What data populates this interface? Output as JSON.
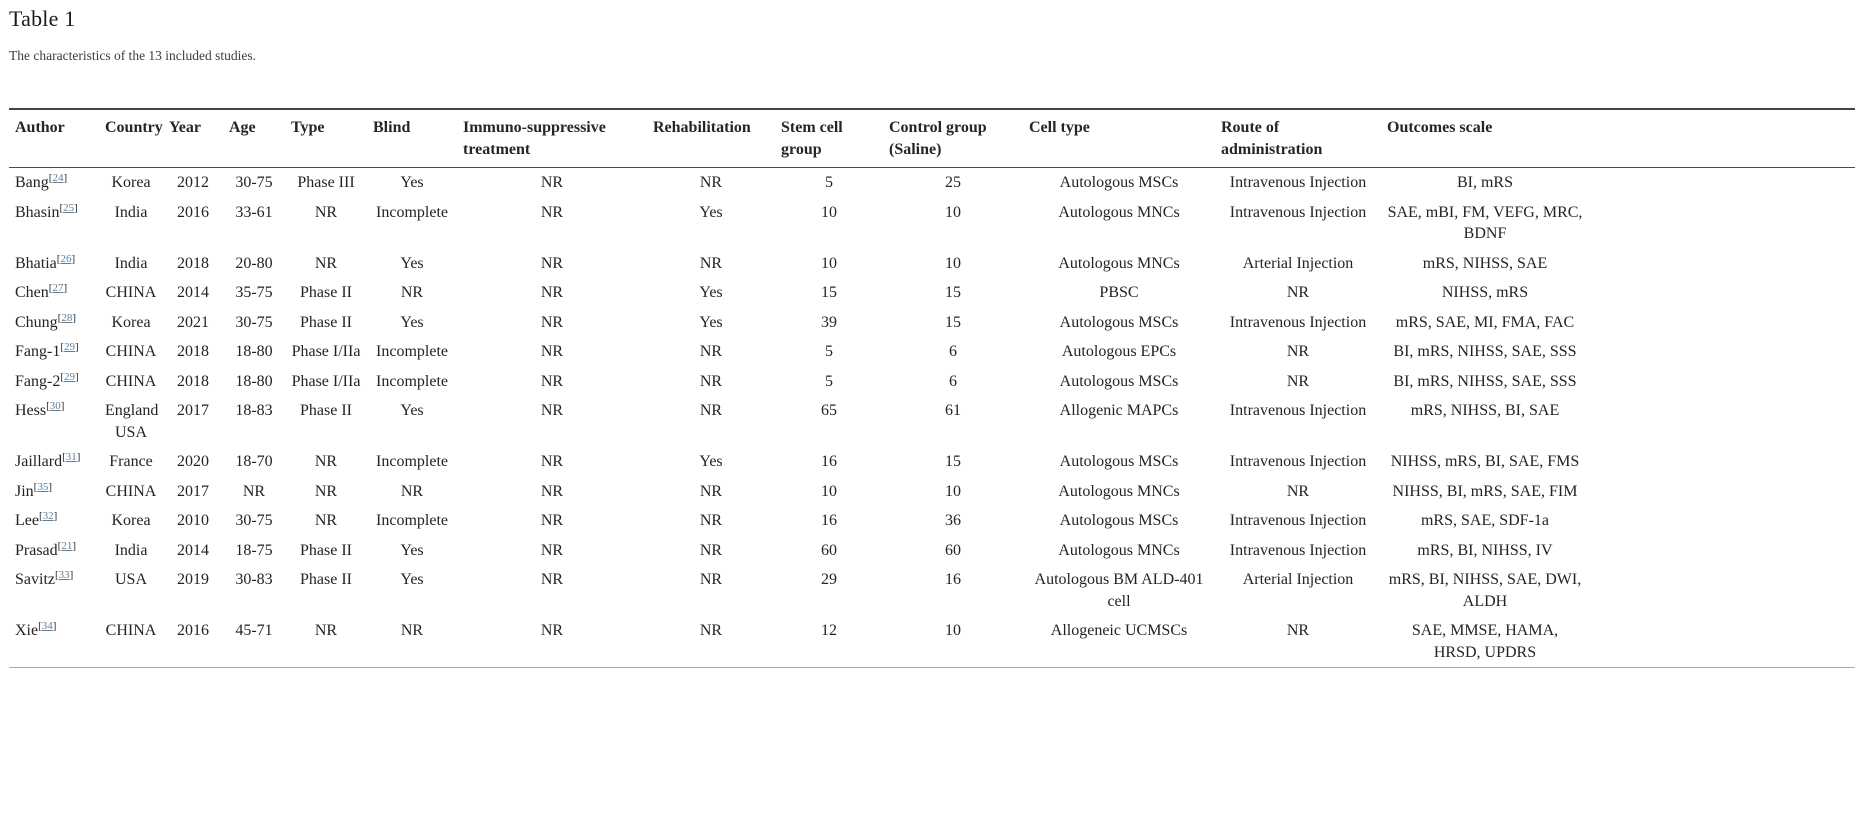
{
  "page": {
    "title": "Table 1",
    "caption": "The characteristics of the 13 included studies."
  },
  "colors": {
    "citation_link": "#5e7f9c",
    "rule_dark": "#454545",
    "rule_light": "#a8a8a8"
  },
  "table": {
    "columns": [
      "Author",
      "Country",
      "Year",
      "Age",
      "Type",
      "Blind",
      "Immuno-suppressive treatment",
      "Rehabilitation",
      "Stem cell group",
      "Control group (Saline)",
      "Cell type",
      "Route of administration",
      "Outcomes scale"
    ],
    "rows": [
      {
        "author": "Bang",
        "ref": "24",
        "country": "Korea",
        "year": "2012",
        "age": "30-75",
        "type": "Phase III",
        "blind": "Yes",
        "immuno": "NR",
        "rehab": "NR",
        "stem": "5",
        "control": "25",
        "cell_type": "Autologous MSCs",
        "route": "Intravenous Injection",
        "outcomes": "BI, mRS"
      },
      {
        "author": "Bhasin",
        "ref": "25",
        "country": "India",
        "year": "2016",
        "age": "33-61",
        "type": "NR",
        "blind": "Incomplete",
        "immuno": "NR",
        "rehab": "Yes",
        "stem": "10",
        "control": "10",
        "cell_type": "Autologous MNCs",
        "route": "Intravenous Injection",
        "outcomes": "SAE, mBI, FM, VEFG, MRC, BDNF"
      },
      {
        "author": "Bhatia",
        "ref": "26",
        "country": "India",
        "year": "2018",
        "age": "20-80",
        "type": "NR",
        "blind": "Yes",
        "immuno": "NR",
        "rehab": "NR",
        "stem": "10",
        "control": "10",
        "cell_type": "Autologous MNCs",
        "route": "Arterial Injection",
        "outcomes": "mRS, NIHSS, SAE"
      },
      {
        "author": "Chen",
        "ref": "27",
        "country": "CHINA",
        "year": "2014",
        "age": "35-75",
        "type": "Phase II",
        "blind": "NR",
        "immuno": "NR",
        "rehab": "Yes",
        "stem": "15",
        "control": "15",
        "cell_type": "PBSC",
        "route": "NR",
        "outcomes": "NIHSS, mRS"
      },
      {
        "author": "Chung",
        "ref": "28",
        "country": "Korea",
        "year": "2021",
        "age": "30-75",
        "type": "Phase II",
        "blind": "Yes",
        "immuno": "NR",
        "rehab": "Yes",
        "stem": "39",
        "control": "15",
        "cell_type": "Autologous MSCs",
        "route": "Intravenous Injection",
        "outcomes": "mRS, SAE, MI, FMA, FAC"
      },
      {
        "author": "Fang-1",
        "ref": "29",
        "country": "CHINA",
        "year": "2018",
        "age": "18-80",
        "type": "Phase I/IIa",
        "blind": "Incomplete",
        "immuno": "NR",
        "rehab": "NR",
        "stem": "5",
        "control": "6",
        "cell_type": "Autologous EPCs",
        "route": "NR",
        "outcomes": "BI, mRS, NIHSS, SAE, SSS"
      },
      {
        "author": "Fang-2",
        "ref": "29",
        "country": "CHINA",
        "year": "2018",
        "age": "18-80",
        "type": "Phase I/IIa",
        "blind": "Incomplete",
        "immuno": "NR",
        "rehab": "NR",
        "stem": "5",
        "control": "6",
        "cell_type": "Autologous MSCs",
        "route": "NR",
        "outcomes": "BI, mRS, NIHSS, SAE, SSS"
      },
      {
        "author": "Hess",
        "ref": "30",
        "country": "England USA",
        "year": "2017",
        "age": "18-83",
        "type": "Phase II",
        "blind": "Yes",
        "immuno": "NR",
        "rehab": "NR",
        "stem": "65",
        "control": "61",
        "cell_type": "Allogenic MAPCs",
        "route": "Intravenous Injection",
        "outcomes": "mRS, NIHSS, BI, SAE"
      },
      {
        "author": "Jaillard",
        "ref": "31",
        "country": "France",
        "year": "2020",
        "age": "18-70",
        "type": "NR",
        "blind": "Incomplete",
        "immuno": "NR",
        "rehab": "Yes",
        "stem": "16",
        "control": "15",
        "cell_type": "Autologous MSCs",
        "route": "Intravenous Injection",
        "outcomes": "NIHSS, mRS, BI, SAE, FMS"
      },
      {
        "author": "Jin",
        "ref": "35",
        "country": "CHINA",
        "year": "2017",
        "age": "NR",
        "type": "NR",
        "blind": "NR",
        "immuno": "NR",
        "rehab": "NR",
        "stem": "10",
        "control": "10",
        "cell_type": "Autologous MNCs",
        "route": "NR",
        "outcomes": "NIHSS, BI, mRS, SAE, FIM"
      },
      {
        "author": "Lee",
        "ref": "32",
        "country": "Korea",
        "year": "2010",
        "age": "30-75",
        "type": "NR",
        "blind": "Incomplete",
        "immuno": "NR",
        "rehab": "NR",
        "stem": "16",
        "control": "36",
        "cell_type": "Autologous MSCs",
        "route": "Intravenous Injection",
        "outcomes": "mRS, SAE, SDF-1a"
      },
      {
        "author": "Prasad",
        "ref": "21",
        "country": "India",
        "year": "2014",
        "age": "18-75",
        "type": "Phase II",
        "blind": "Yes",
        "immuno": "NR",
        "rehab": "NR",
        "stem": "60",
        "control": "60",
        "cell_type": "Autologous MNCs",
        "route": "Intravenous Injection",
        "outcomes": "mRS, BI, NIHSS, IV"
      },
      {
        "author": "Savitz",
        "ref": "33",
        "country": "USA",
        "year": "2019",
        "age": "30-83",
        "type": "Phase II",
        "blind": "Yes",
        "immuno": "NR",
        "rehab": "NR",
        "stem": "29",
        "control": "16",
        "cell_type": "Autologous BM ALD-401 cell",
        "route": "Arterial Injection",
        "outcomes": "mRS, BI, NIHSS, SAE, DWI, ALDH"
      },
      {
        "author": "Xie",
        "ref": "34",
        "country": "CHINA",
        "year": "2016",
        "age": "45-71",
        "type": "NR",
        "blind": "NR",
        "immuno": "NR",
        "rehab": "NR",
        "stem": "12",
        "control": "10",
        "cell_type": "Allogeneic UCMSCs",
        "route": "NR",
        "outcomes": "SAE, MMSE, HAMA, HRSD, UPDRS"
      }
    ]
  }
}
